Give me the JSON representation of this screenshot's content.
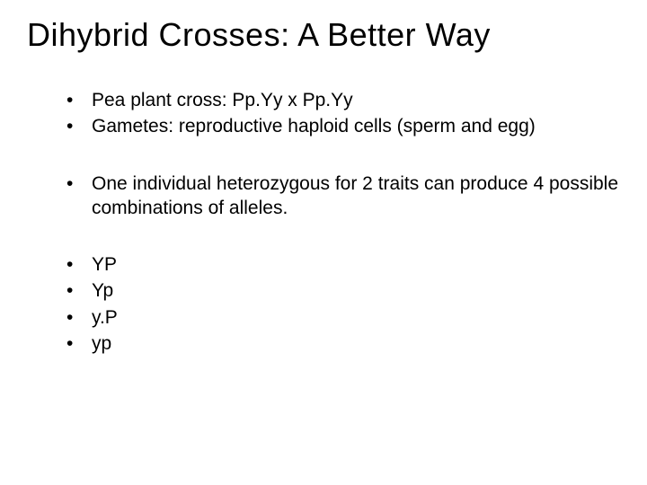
{
  "title": "Dihybrid Crosses:  A Better Way",
  "group1": {
    "item0": "Pea plant cross:  Pp.Yy x Pp.Yy",
    "item1": "Gametes: reproductive haploid cells (sperm and egg)"
  },
  "group2": {
    "item0": "One individual heterozygous for 2 traits can produce 4 possible combinations of alleles."
  },
  "group3": {
    "item0": "YP",
    "item1": "Yp",
    "item2": "y.P",
    "item3": "yp"
  },
  "bullet": "•",
  "colors": {
    "background": "#ffffff",
    "text": "#000000"
  },
  "typography": {
    "title_fontsize": 36,
    "body_fontsize": 21,
    "font_family": "Arial"
  }
}
